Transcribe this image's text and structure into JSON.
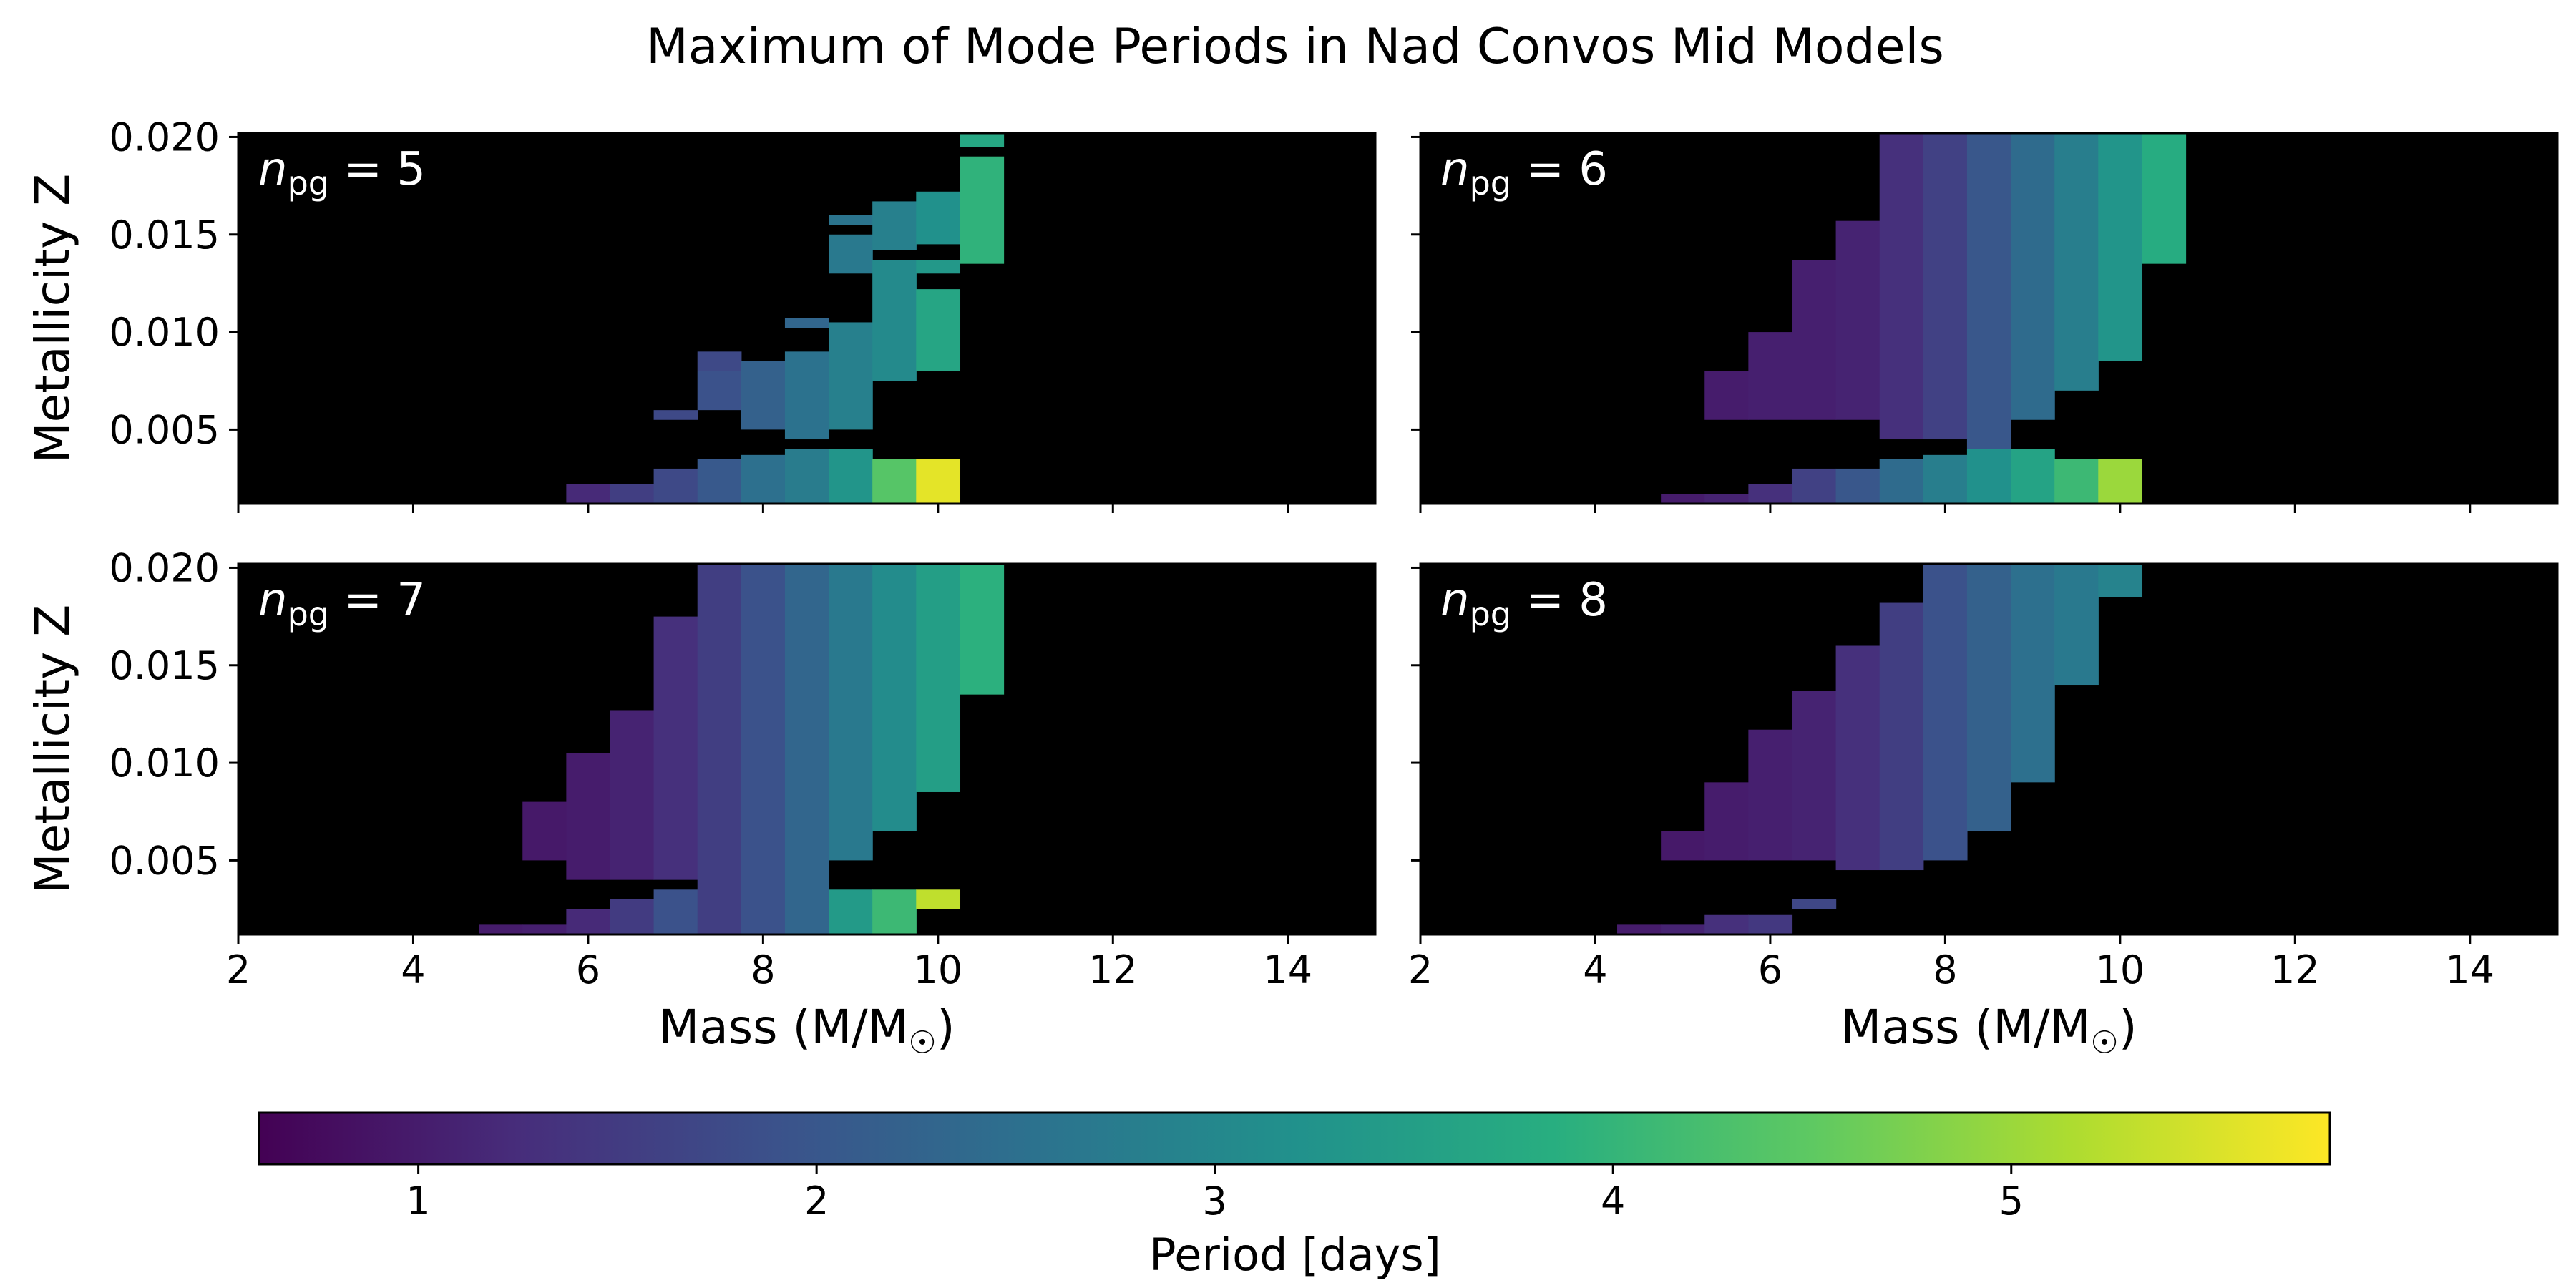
{
  "chart_data": {
    "type": "heatmap",
    "title": "Maximum of Mode Periods in Nad Convos Mid Models",
    "ylabel": "Metallicity Z",
    "xlabel_main": "Mass (M/M",
    "xlabel_sun": "☉",
    "xlabel_close": ")",
    "xlim": [
      2,
      15
    ],
    "ylim": [
      0.0012,
      0.0202
    ],
    "xticks": [
      2,
      4,
      6,
      8,
      10,
      12,
      14
    ],
    "yticks": [
      0.005,
      0.01,
      0.015,
      0.02
    ],
    "xtick_labels": [
      "2",
      "4",
      "6",
      "8",
      "10",
      "12",
      "14"
    ],
    "ytick_labels": [
      "0.005",
      "0.010",
      "0.015",
      "0.020"
    ],
    "background_color": "#000000",
    "colormap": "viridis",
    "colorbar": {
      "label": "Period [days]",
      "range": [
        0.6,
        5.8
      ],
      "ticks": [
        1,
        2,
        3,
        4,
        5
      ],
      "tick_labels": [
        "1",
        "2",
        "3",
        "4",
        "5"
      ]
    },
    "panel_label_n": "n",
    "panel_label_sub": "pg",
    "panel_label_eq": "=",
    "panels": [
      {
        "n_pg": "5",
        "columns": [
          {
            "mass": 6.0,
            "segments": [
              [
                0.0012,
                0.0022,
                1.2
              ]
            ]
          },
          {
            "mass": 6.5,
            "segments": [
              [
                0.0012,
                0.0022,
                1.55
              ]
            ]
          },
          {
            "mass": 7.0,
            "segments": [
              [
                0.0012,
                0.003,
                1.75
              ],
              [
                0.0055,
                0.006,
                1.75
              ]
            ]
          },
          {
            "mass": 7.5,
            "segments": [
              [
                0.0012,
                0.0035,
                2.05
              ],
              [
                0.006,
                0.008,
                1.9
              ],
              [
                0.008,
                0.009,
                1.75
              ]
            ]
          },
          {
            "mass": 8.0,
            "segments": [
              [
                0.0012,
                0.0037,
                2.5
              ],
              [
                0.005,
                0.0085,
                2.2
              ]
            ]
          },
          {
            "mass": 8.5,
            "segments": [
              [
                0.0012,
                0.004,
                2.75
              ],
              [
                0.0045,
                0.009,
                2.55
              ],
              [
                0.0102,
                0.0107,
                2.3
              ]
            ]
          },
          {
            "mass": 9.0,
            "segments": [
              [
                0.0012,
                0.004,
                3.3
              ],
              [
                0.005,
                0.0105,
                2.85
              ],
              [
                0.013,
                0.015,
                2.7
              ],
              [
                0.0155,
                0.016,
                2.6
              ]
            ]
          },
          {
            "mass": 9.5,
            "segments": [
              [
                0.0012,
                0.0035,
                4.4
              ],
              [
                0.0075,
                0.0137,
                3.05
              ],
              [
                0.0142,
                0.0167,
                2.85
              ]
            ]
          },
          {
            "mass": 10.0,
            "segments": [
              [
                0.0012,
                0.0035,
                5.6
              ],
              [
                0.008,
                0.0122,
                3.65
              ],
              [
                0.013,
                0.0137,
                3.35
              ],
              [
                0.0145,
                0.0172,
                3.2
              ]
            ]
          },
          {
            "mass": 10.5,
            "segments": [
              [
                0.0135,
                0.019,
                3.95
              ],
              [
                0.0195,
                0.0202,
                3.7
              ]
            ]
          }
        ]
      },
      {
        "n_pg": "6",
        "columns": [
          {
            "mass": 5.0,
            "segments": [
              [
                0.0012,
                0.0017,
                1.0
              ]
            ]
          },
          {
            "mass": 5.5,
            "segments": [
              [
                0.0012,
                0.0017,
                1.1
              ],
              [
                0.0055,
                0.008,
                1.0
              ]
            ]
          },
          {
            "mass": 6.0,
            "segments": [
              [
                0.0012,
                0.0022,
                1.3
              ],
              [
                0.0055,
                0.01,
                1.05
              ]
            ]
          },
          {
            "mass": 6.5,
            "segments": [
              [
                0.0012,
                0.003,
                1.6
              ],
              [
                0.0055,
                0.0137,
                1.05
              ]
            ]
          },
          {
            "mass": 7.0,
            "segments": [
              [
                0.0012,
                0.003,
                2.0
              ],
              [
                0.0055,
                0.0157,
                1.1
              ]
            ]
          },
          {
            "mass": 7.5,
            "segments": [
              [
                0.0012,
                0.0035,
                2.4
              ],
              [
                0.0045,
                0.0202,
                1.3
              ]
            ]
          },
          {
            "mass": 8.0,
            "segments": [
              [
                0.0012,
                0.0037,
                2.8
              ],
              [
                0.0045,
                0.0202,
                1.6
              ]
            ]
          },
          {
            "mass": 8.5,
            "segments": [
              [
                0.0012,
                0.004,
                3.2
              ],
              [
                0.004,
                0.0202,
                2.0
              ]
            ]
          },
          {
            "mass": 9.0,
            "segments": [
              [
                0.0012,
                0.004,
                3.6
              ],
              [
                0.0055,
                0.0202,
                2.4
              ]
            ]
          },
          {
            "mass": 9.5,
            "segments": [
              [
                0.0012,
                0.0035,
                4.1
              ],
              [
                0.007,
                0.0202,
                2.8
              ]
            ]
          },
          {
            "mass": 10.0,
            "segments": [
              [
                0.0012,
                0.0035,
                5.0
              ],
              [
                0.0085,
                0.0202,
                3.3
              ]
            ]
          },
          {
            "mass": 10.5,
            "segments": [
              [
                0.0135,
                0.0202,
                3.8
              ]
            ]
          }
        ]
      },
      {
        "n_pg": "7",
        "columns": [
          {
            "mass": 5.0,
            "segments": [
              [
                0.0012,
                0.0017,
                1.0
              ]
            ]
          },
          {
            "mass": 5.5,
            "segments": [
              [
                0.0012,
                0.0017,
                1.05
              ],
              [
                0.005,
                0.008,
                0.95
              ]
            ]
          },
          {
            "mass": 6.0,
            "segments": [
              [
                0.0012,
                0.0025,
                1.2
              ],
              [
                0.004,
                0.0105,
                1.0
              ]
            ]
          },
          {
            "mass": 6.5,
            "segments": [
              [
                0.0012,
                0.003,
                1.5
              ],
              [
                0.004,
                0.0127,
                1.1
              ]
            ]
          },
          {
            "mass": 7.0,
            "segments": [
              [
                0.0012,
                0.0035,
                1.9
              ],
              [
                0.004,
                0.0175,
                1.3
              ]
            ]
          },
          {
            "mass": 7.5,
            "segments": [
              [
                0.0012,
                0.0202,
                1.55
              ]
            ]
          },
          {
            "mass": 8.0,
            "segments": [
              [
                0.0012,
                0.0202,
                1.9
              ]
            ]
          },
          {
            "mass": 8.5,
            "segments": [
              [
                0.0012,
                0.0202,
                2.3
              ]
            ]
          },
          {
            "mass": 9.0,
            "segments": [
              [
                0.0012,
                0.0035,
                3.4
              ],
              [
                0.005,
                0.0202,
                2.7
              ]
            ]
          },
          {
            "mass": 9.5,
            "segments": [
              [
                0.0012,
                0.0035,
                4.1
              ],
              [
                0.0065,
                0.0202,
                3.1
              ]
            ]
          },
          {
            "mass": 10.0,
            "segments": [
              [
                0.0025,
                0.0035,
                5.3
              ],
              [
                0.0085,
                0.0202,
                3.5
              ]
            ]
          },
          {
            "mass": 10.5,
            "segments": [
              [
                0.0135,
                0.0202,
                3.9
              ]
            ]
          }
        ]
      },
      {
        "n_pg": "8",
        "columns": [
          {
            "mass": 4.5,
            "segments": [
              [
                0.0012,
                0.0017,
                1.0
              ]
            ]
          },
          {
            "mass": 5.0,
            "segments": [
              [
                0.0012,
                0.0017,
                1.1
              ],
              [
                0.005,
                0.0065,
                0.95
              ]
            ]
          },
          {
            "mass": 5.5,
            "segments": [
              [
                0.0012,
                0.0022,
                1.3
              ],
              [
                0.005,
                0.009,
                1.0
              ]
            ]
          },
          {
            "mass": 6.0,
            "segments": [
              [
                0.0012,
                0.0022,
                1.45
              ],
              [
                0.005,
                0.0117,
                1.05
              ]
            ]
          },
          {
            "mass": 6.5,
            "segments": [
              [
                0.0025,
                0.003,
                1.7
              ],
              [
                0.005,
                0.0137,
                1.1
              ]
            ]
          },
          {
            "mass": 7.0,
            "segments": [
              [
                0.0045,
                0.016,
                1.3
              ]
            ]
          },
          {
            "mass": 7.5,
            "segments": [
              [
                0.0045,
                0.0182,
                1.55
              ]
            ]
          },
          {
            "mass": 8.0,
            "segments": [
              [
                0.005,
                0.0202,
                1.9
              ]
            ]
          },
          {
            "mass": 8.5,
            "segments": [
              [
                0.0065,
                0.0202,
                2.2
              ]
            ]
          },
          {
            "mass": 9.0,
            "segments": [
              [
                0.009,
                0.0202,
                2.5
              ]
            ]
          },
          {
            "mass": 9.5,
            "segments": [
              [
                0.014,
                0.0202,
                2.7
              ]
            ]
          },
          {
            "mass": 10.0,
            "segments": [
              [
                0.0185,
                0.0202,
                2.9
              ]
            ]
          }
        ]
      }
    ]
  }
}
